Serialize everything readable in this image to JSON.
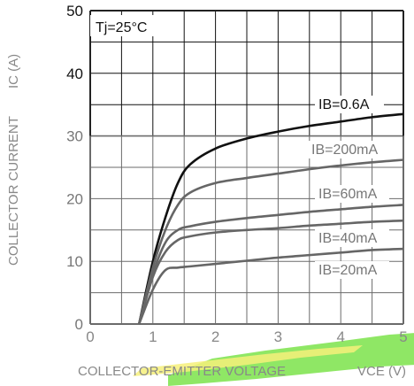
{
  "chart_data": {
    "type": "line",
    "title": "",
    "xlabel": "COLLECTOR-EMITTER VOLTAGE",
    "xunit": "VCE (V)",
    "ylabel": "COLLECTOR CURRENT",
    "yunit": "IC (A)",
    "xlim": [
      0,
      5
    ],
    "ylim": [
      0,
      50
    ],
    "x_ticks": [
      "0",
      "1",
      "2",
      "3",
      "4",
      "5"
    ],
    "y_ticks": [
      "0",
      "10",
      "20",
      "30",
      "40",
      "50"
    ],
    "grid": "on, minor divisions every 0.5 V and 5 A",
    "annotation": "Tj=25°C",
    "series": [
      {
        "name": "IB=0.6A",
        "x": [
          0.78,
          1.0,
          1.2,
          1.4,
          1.6,
          2.0,
          2.5,
          3.0,
          3.5,
          4.0,
          4.5,
          5.0
        ],
        "y": [
          0,
          10.0,
          17.0,
          22.5,
          25.5,
          28.0,
          29.6,
          30.7,
          31.6,
          32.3,
          33.0,
          33.5
        ]
      },
      {
        "name": "IB=200mA",
        "x": [
          0.78,
          1.0,
          1.2,
          1.4,
          1.6,
          2.0,
          2.5,
          3.0,
          3.5,
          4.0,
          4.5,
          5.0
        ],
        "y": [
          0,
          9.0,
          15.0,
          19.0,
          21.0,
          22.5,
          23.3,
          24.0,
          24.7,
          25.3,
          25.8,
          26.2
        ]
      },
      {
        "name": "IB=60mA",
        "x": [
          0.78,
          1.0,
          1.2,
          1.4,
          1.6,
          2.0,
          2.5,
          3.0,
          3.5,
          4.0,
          4.5,
          5.0
        ],
        "y": [
          0,
          8.0,
          13.0,
          15.0,
          15.6,
          16.3,
          16.9,
          17.4,
          17.9,
          18.3,
          18.7,
          19.0
        ]
      },
      {
        "name": "IB=40mA",
        "x": [
          0.78,
          1.0,
          1.2,
          1.4,
          1.6,
          2.0,
          2.5,
          3.0,
          3.5,
          4.0,
          4.5,
          5.0
        ],
        "y": [
          0,
          7.5,
          11.5,
          13.4,
          14.0,
          14.6,
          15.0,
          15.3,
          15.7,
          16.0,
          16.3,
          16.5
        ]
      },
      {
        "name": "IB=20mA",
        "x": [
          0.78,
          1.0,
          1.2,
          1.4,
          1.6,
          2.0,
          2.5,
          3.0,
          3.5,
          4.0,
          4.5,
          5.0
        ],
        "y": [
          0,
          5.5,
          8.6,
          9.0,
          9.2,
          9.6,
          10.1,
          10.6,
          11.0,
          11.4,
          11.8,
          12.0
        ]
      }
    ],
    "colors": {
      "axis": "#222222",
      "grid_upper": "#111111",
      "grid_lower": "#6b6b6b",
      "curve_dark": "#111111",
      "curve": "#666666",
      "label_dark": "#111111",
      "label": "#777777",
      "highlight_green": "#7be34a",
      "highlight_yellow": "#f6f07a"
    }
  }
}
